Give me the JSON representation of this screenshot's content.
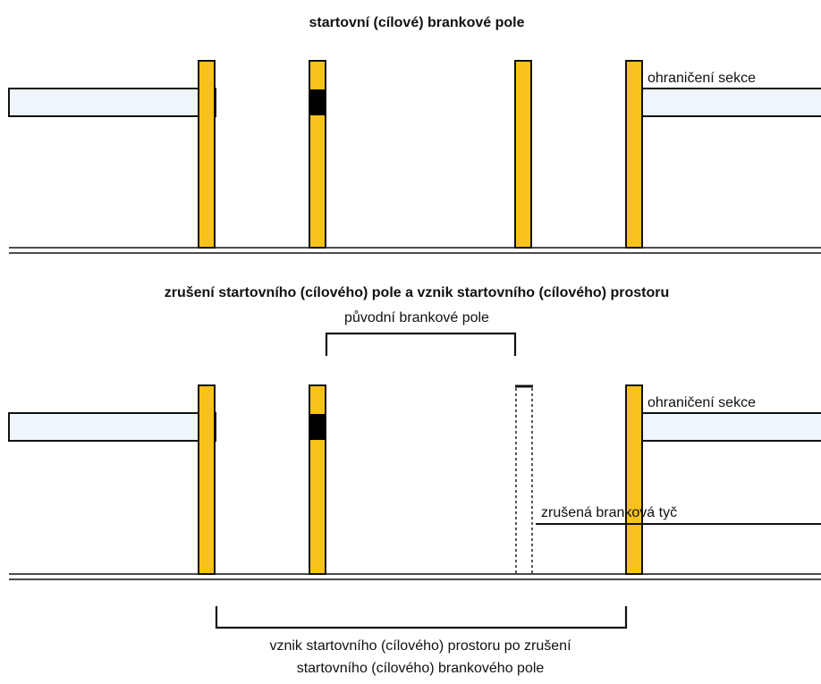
{
  "diagram": {
    "top_title": "startovní (cílové) brankové pole",
    "bottom_title": "zrušení startovního (cílového) pole a vznik startovního (cílového) prostoru",
    "section_boundary_label_top": "ohraničení sekce",
    "section_boundary_label_bottom": "ohraničení sekce",
    "original_gate_field_label": "původní brankové pole",
    "removed_gate_pole_label": "zrušená branková tyč",
    "start_area_label_line1": "vznik startovního (cílového) prostoru po zrušení",
    "start_area_label_line2": "startovního (cílového) brankového pole"
  },
  "colors": {
    "pole_yellow": "#f7c21a",
    "marker_black": "#000000",
    "bar_fill": "#eef5fb",
    "line": "#111111"
  }
}
